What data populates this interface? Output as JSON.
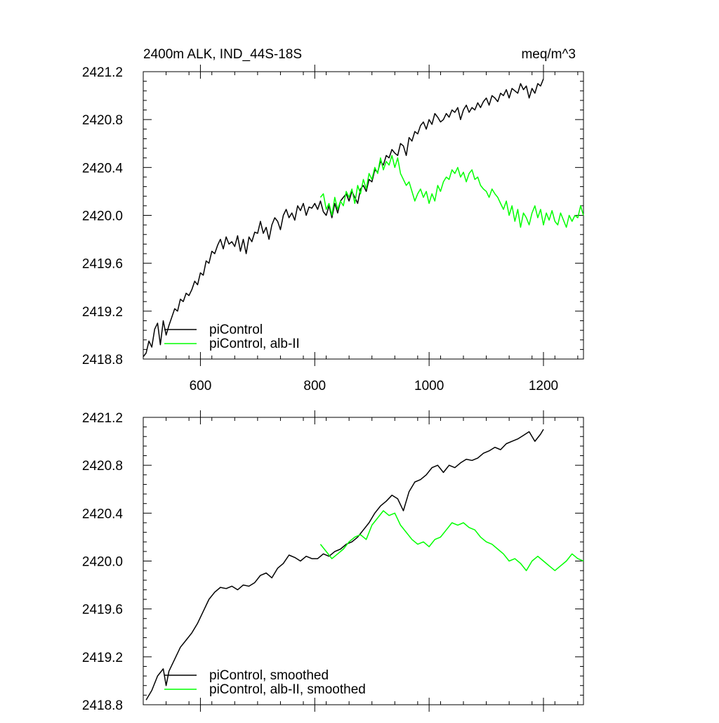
{
  "header": {
    "title": "2400m ALK, IND_44S-18S",
    "units": "meq/m^3"
  },
  "colors": {
    "picontrol": "#000000",
    "alb_ii": "#00ff00",
    "axis": "#000000",
    "background": "#ffffff"
  },
  "chart_data": [
    {
      "type": "line",
      "panel": "top",
      "xlim": [
        500,
        1270
      ],
      "ylim": [
        2418.8,
        2421.2
      ],
      "x_ticks": [
        600,
        800,
        1000,
        1200
      ],
      "x_tick_labels": [
        "600",
        "800",
        "1000",
        "1200"
      ],
      "y_ticks": [
        2418.8,
        2419.2,
        2419.6,
        2420.0,
        2420.4,
        2420.8,
        2421.2
      ],
      "y_tick_labels": [
        "2418.8",
        "2419.2",
        "2419.6",
        "2420.0",
        "2420.4",
        "2420.8",
        "2421.2"
      ],
      "grid": false,
      "legend_position": "bottom-left",
      "series": [
        {
          "name": "piControl",
          "color": "#000000",
          "x": [
            500,
            505,
            510,
            515,
            520,
            525,
            530,
            535,
            540,
            545,
            550,
            555,
            560,
            565,
            570,
            575,
            580,
            585,
            590,
            595,
            600,
            605,
            610,
            615,
            620,
            625,
            630,
            635,
            640,
            645,
            650,
            655,
            660,
            665,
            670,
            675,
            680,
            685,
            690,
            695,
            700,
            705,
            710,
            715,
            720,
            725,
            730,
            735,
            740,
            745,
            750,
            755,
            760,
            765,
            770,
            775,
            780,
            785,
            790,
            795,
            800,
            805,
            810,
            815,
            820,
            825,
            830,
            835,
            840,
            845,
            850,
            855,
            860,
            865,
            870,
            875,
            880,
            885,
            890,
            895,
            900,
            905,
            910,
            915,
            920,
            925,
            930,
            935,
            940,
            945,
            950,
            955,
            960,
            965,
            970,
            975,
            980,
            985,
            990,
            995,
            1000,
            1005,
            1010,
            1015,
            1020,
            1025,
            1030,
            1035,
            1040,
            1045,
            1050,
            1055,
            1060,
            1065,
            1070,
            1075,
            1080,
            1085,
            1090,
            1095,
            1100,
            1105,
            1110,
            1115,
            1120,
            1125,
            1130,
            1135,
            1140,
            1145,
            1150,
            1155,
            1160,
            1165,
            1170,
            1175,
            1180,
            1185,
            1190,
            1195,
            1200
          ],
          "values": [
            2418.82,
            2418.85,
            2418.95,
            2418.9,
            2419.05,
            2419.1,
            2418.92,
            2419.12,
            2419.0,
            2419.08,
            2419.15,
            2419.22,
            2419.2,
            2419.3,
            2419.28,
            2419.35,
            2419.33,
            2419.38,
            2419.45,
            2419.42,
            2419.52,
            2419.5,
            2419.62,
            2419.6,
            2419.7,
            2419.68,
            2419.75,
            2419.8,
            2419.72,
            2419.82,
            2419.76,
            2419.78,
            2419.74,
            2419.83,
            2419.7,
            2419.8,
            2419.68,
            2419.82,
            2419.78,
            2419.86,
            2419.85,
            2419.95,
            2419.85,
            2419.9,
            2419.8,
            2419.92,
            2419.98,
            2419.95,
            2419.88,
            2420.0,
            2420.05,
            2419.98,
            2420.02,
            2419.96,
            2420.08,
            2420.04,
            2420.1,
            2420.0,
            2420.07,
            2420.06,
            2420.1,
            2420.05,
            2420.12,
            2420.03,
            2420.0,
            2420.08,
            2419.98,
            2420.1,
            2420.02,
            2420.12,
            2420.15,
            2420.18,
            2420.12,
            2420.2,
            2420.15,
            2420.1,
            2420.22,
            2420.25,
            2420.2,
            2420.3,
            2420.28,
            2420.38,
            2420.36,
            2420.45,
            2420.42,
            2420.5,
            2420.48,
            2420.55,
            2420.52,
            2420.5,
            2420.6,
            2420.58,
            2420.5,
            2420.65,
            2420.62,
            2420.7,
            2420.68,
            2420.75,
            2420.78,
            2420.72,
            2420.8,
            2420.76,
            2420.85,
            2420.82,
            2420.78,
            2420.8,
            2420.85,
            2420.82,
            2420.88,
            2420.86,
            2420.9,
            2420.8,
            2420.88,
            2420.92,
            2420.86,
            2420.9,
            2420.88,
            2420.94,
            2420.9,
            2420.95,
            2420.98,
            2420.92,
            2421.0,
            2420.98,
            2420.95,
            2421.02,
            2421.0,
            2421.05,
            2420.98,
            2421.06,
            2421.04,
            2421.02,
            2421.1,
            2421.05,
            2421.08,
            2420.98,
            2421.06,
            2421.02,
            2421.1,
            2421.08,
            2421.14
          ]
        },
        {
          "name": "piControl, alb-II",
          "color": "#00ff00",
          "x": [
            810,
            815,
            820,
            825,
            830,
            835,
            840,
            845,
            850,
            855,
            860,
            865,
            870,
            875,
            880,
            885,
            890,
            895,
            900,
            905,
            910,
            915,
            920,
            925,
            930,
            935,
            940,
            945,
            950,
            955,
            960,
            965,
            970,
            975,
            980,
            985,
            990,
            995,
            1000,
            1005,
            1010,
            1015,
            1020,
            1025,
            1030,
            1035,
            1040,
            1045,
            1050,
            1055,
            1060,
            1065,
            1070,
            1075,
            1080,
            1085,
            1090,
            1095,
            1100,
            1105,
            1110,
            1115,
            1120,
            1125,
            1130,
            1135,
            1140,
            1145,
            1150,
            1155,
            1160,
            1165,
            1170,
            1175,
            1180,
            1185,
            1190,
            1195,
            1200,
            1205,
            1210,
            1215,
            1220,
            1225,
            1230,
            1235,
            1240,
            1245,
            1250,
            1255,
            1260,
            1265,
            1270
          ],
          "values": [
            2420.15,
            2420.18,
            2420.05,
            2420.1,
            2420.0,
            2420.15,
            2420.05,
            2420.12,
            2420.08,
            2420.2,
            2420.15,
            2420.22,
            2420.1,
            2420.25,
            2420.18,
            2420.3,
            2420.22,
            2420.35,
            2420.3,
            2420.4,
            2420.35,
            2420.48,
            2420.38,
            2420.45,
            2420.42,
            2420.5,
            2420.4,
            2420.48,
            2420.35,
            2420.3,
            2420.25,
            2420.28,
            2420.2,
            2420.12,
            2420.18,
            2420.22,
            2420.15,
            2420.2,
            2420.1,
            2420.18,
            2420.12,
            2420.25,
            2420.2,
            2420.28,
            2420.32,
            2420.3,
            2420.38,
            2420.35,
            2420.4,
            2420.32,
            2420.36,
            2420.28,
            2420.35,
            2420.38,
            2420.3,
            2420.32,
            2420.25,
            2420.22,
            2420.2,
            2420.15,
            2420.22,
            2420.18,
            2420.15,
            2420.1,
            2420.05,
            2420.12,
            2420.0,
            2420.08,
            2419.95,
            2420.05,
            2419.9,
            2420.02,
            2419.98,
            2419.92,
            2420.02,
            2420.08,
            2419.98,
            2420.05,
            2419.92,
            2420.02,
            2419.96,
            2420.04,
            2419.95,
            2419.92,
            2420.02,
            2419.96,
            2419.9,
            2420.0,
            2419.95,
            2420.0,
            2419.98,
            2420.08,
            2420.0
          ]
        }
      ]
    },
    {
      "type": "line",
      "panel": "bottom",
      "xlim": [
        500,
        1270
      ],
      "ylim": [
        2418.8,
        2421.2
      ],
      "x_ticks": [
        600,
        800,
        1000,
        1200
      ],
      "x_tick_labels": [],
      "y_ticks": [
        2418.8,
        2419.2,
        2419.6,
        2420.0,
        2420.4,
        2420.8,
        2421.2
      ],
      "y_tick_labels": [
        "2418.8",
        "2419.2",
        "2419.6",
        "2420.0",
        "2420.4",
        "2420.8",
        "2421.2"
      ],
      "grid": false,
      "legend_position": "bottom-left",
      "series": [
        {
          "name": "piControl, smoothed",
          "color": "#000000",
          "x": [
            505,
            515,
            525,
            535,
            540,
            545,
            555,
            565,
            575,
            585,
            595,
            605,
            615,
            625,
            635,
            645,
            655,
            665,
            675,
            685,
            695,
            705,
            715,
            725,
            735,
            745,
            755,
            765,
            775,
            785,
            795,
            805,
            815,
            825,
            835,
            845,
            855,
            865,
            875,
            885,
            895,
            905,
            915,
            925,
            935,
            945,
            955,
            965,
            975,
            985,
            995,
            1005,
            1015,
            1025,
            1035,
            1045,
            1055,
            1065,
            1075,
            1085,
            1095,
            1105,
            1115,
            1125,
            1135,
            1145,
            1155,
            1165,
            1175,
            1185,
            1195,
            1200
          ],
          "values": [
            2418.84,
            2418.92,
            2419.04,
            2419.1,
            2418.96,
            2419.08,
            2419.18,
            2419.28,
            2419.34,
            2419.4,
            2419.48,
            2419.58,
            2419.68,
            2419.74,
            2419.78,
            2419.77,
            2419.79,
            2419.76,
            2419.8,
            2419.79,
            2419.82,
            2419.88,
            2419.9,
            2419.86,
            2419.94,
            2419.98,
            2420.05,
            2420.03,
            2420.0,
            2420.04,
            2420.02,
            2420.02,
            2420.06,
            2420.04,
            2420.08,
            2420.1,
            2420.14,
            2420.16,
            2420.2,
            2420.26,
            2420.32,
            2420.4,
            2420.46,
            2420.5,
            2420.55,
            2420.52,
            2420.42,
            2420.58,
            2420.66,
            2420.68,
            2420.72,
            2420.78,
            2420.8,
            2420.74,
            2420.8,
            2420.78,
            2420.82,
            2420.85,
            2420.84,
            2420.86,
            2420.9,
            2420.92,
            2420.95,
            2420.93,
            2420.98,
            2421.0,
            2421.02,
            2421.05,
            2421.08,
            2421.0,
            2421.06,
            2421.1
          ]
        },
        {
          "name": "piControl, alb-II, smoothed",
          "color": "#00ff00",
          "x": [
            810,
            820,
            830,
            840,
            850,
            860,
            870,
            880,
            890,
            900,
            910,
            920,
            930,
            940,
            950,
            960,
            970,
            980,
            990,
            1000,
            1010,
            1020,
            1030,
            1040,
            1050,
            1060,
            1070,
            1080,
            1090,
            1100,
            1110,
            1120,
            1130,
            1140,
            1150,
            1160,
            1170,
            1180,
            1190,
            1200,
            1210,
            1220,
            1230,
            1240,
            1250,
            1260,
            1270
          ],
          "values": [
            2420.14,
            2420.08,
            2420.02,
            2420.06,
            2420.1,
            2420.16,
            2420.2,
            2420.22,
            2420.18,
            2420.3,
            2420.36,
            2420.42,
            2420.38,
            2420.4,
            2420.3,
            2420.24,
            2420.18,
            2420.14,
            2420.16,
            2420.12,
            2420.18,
            2420.2,
            2420.26,
            2420.32,
            2420.3,
            2420.32,
            2420.28,
            2420.26,
            2420.2,
            2420.16,
            2420.14,
            2420.1,
            2420.06,
            2420.0,
            2420.02,
            2419.98,
            2419.92,
            2420.0,
            2420.04,
            2420.0,
            2419.96,
            2419.92,
            2419.96,
            2420.0,
            2420.06,
            2420.02,
            2420.0
          ]
        }
      ]
    }
  ]
}
